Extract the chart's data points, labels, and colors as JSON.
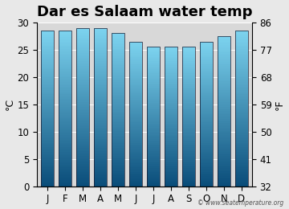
{
  "title": "Dar es Salaam water temp",
  "months": [
    "J",
    "F",
    "M",
    "A",
    "M",
    "J",
    "J",
    "A",
    "S",
    "O",
    "N",
    "D"
  ],
  "values_c": [
    28.5,
    28.5,
    29.0,
    29.0,
    28.0,
    26.5,
    25.5,
    25.5,
    25.5,
    26.5,
    27.5,
    28.5
  ],
  "ylim_c": [
    0,
    30
  ],
  "yticks_c": [
    0,
    5,
    10,
    15,
    20,
    25,
    30
  ],
  "yticks_f": [
    32,
    41,
    50,
    59,
    68,
    77,
    86
  ],
  "ylabel_left": "°C",
  "ylabel_right": "°F",
  "bar_color_top": "#7dd4f0",
  "bar_color_bottom": "#0a4d7a",
  "bar_edge_color": "#1a1a2e",
  "background_color": "#e8e8e8",
  "plot_bg_color": "#d8d8d8",
  "watermark": "© www.seatemperature.org",
  "title_fontsize": 13,
  "tick_fontsize": 8.5,
  "label_fontsize": 9
}
